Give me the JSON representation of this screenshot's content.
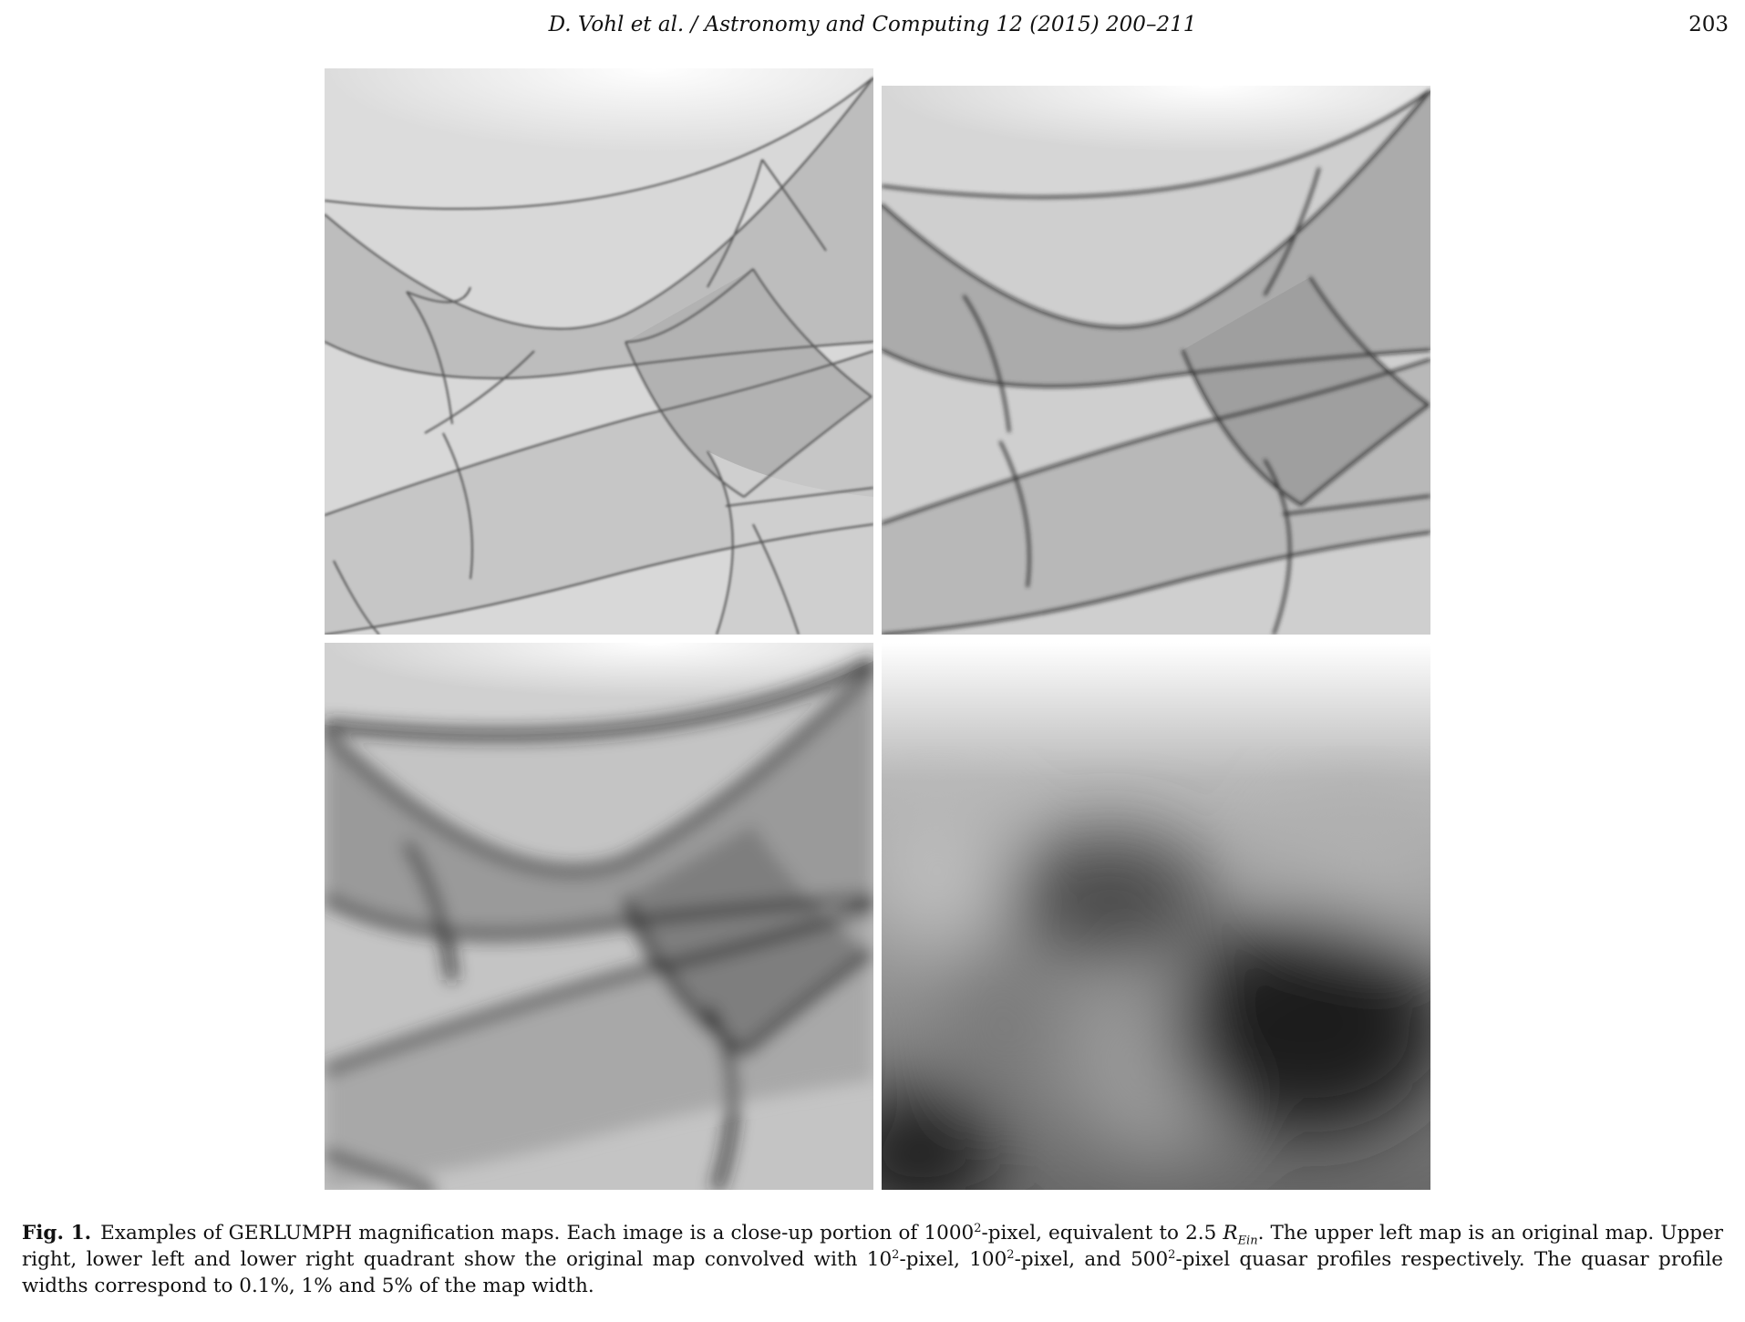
{
  "header": {
    "running_title": "D. Vohl et al. / Astronomy and Computing 12 (2015) 200–211",
    "page_number": "203"
  },
  "figure": {
    "panels": [
      {
        "position": "upper-left"
      },
      {
        "position": "upper-right"
      },
      {
        "position": "lower-left"
      },
      {
        "position": "lower-right"
      }
    ]
  },
  "caption": {
    "label": "Fig. 1.",
    "part1": "Examples of GERLUMPH magnification maps. Each image is a close-up portion of 1000",
    "sup1": "2",
    "part2": "-pixel, equivalent to 2.5 ",
    "r": "R",
    "sub": "Ein",
    "part3": ". The upper left map is an original map. Upper right, lower left and lower right quadrant show the original map convolved with 10",
    "sup2": "2",
    "part4": "-pixel, 100",
    "sup3": "2",
    "part5": "-pixel, and 500",
    "sup4": "2",
    "part6": "-pixel quasar profiles respectively. The quasar profile widths correspond to 0.1%, 1% and 5% of the map width."
  }
}
